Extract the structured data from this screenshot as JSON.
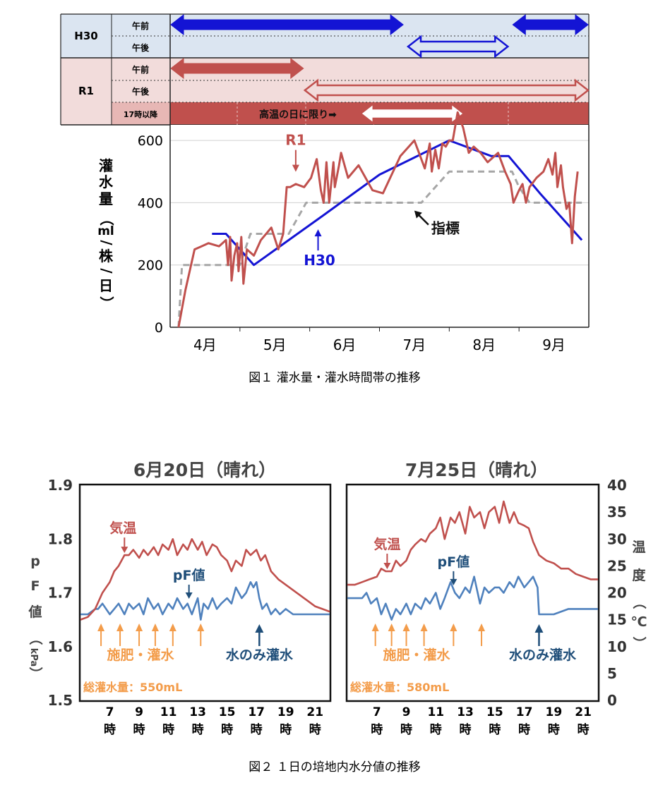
{
  "colors": {
    "blue": "#1414d4",
    "red": "#c0504d",
    "gray": "#a6a6a6",
    "orange": "#f39c4a",
    "navy": "#1f4e79",
    "pf_blue": "#4f81bd",
    "temp_red": "#c0504d",
    "h30_bg": "#dbe5f1",
    "r1_bg": "#f2dcdb",
    "r1_dark": "#c0504d"
  },
  "figure1": {
    "caption": "図１ 灌水量・灌水時間帯の推移",
    "schedule": {
      "rows": [
        {
          "group": "H30",
          "sub": "午前"
        },
        {
          "group": "H30",
          "sub": "午後"
        },
        {
          "group": "R1",
          "sub": "午前"
        },
        {
          "group": "R1",
          "sub": "午後"
        },
        {
          "group": "R1",
          "sub": "17時以降"
        }
      ],
      "group_labels": [
        "H30",
        "R1"
      ],
      "note": "高温の日に限り➡"
    }
  },
  "figure2": {
    "caption": "図２ １日の培地内水分値の推移"
  },
  "chart_data": [
    {
      "type": "line",
      "title": "",
      "ylabel": "灌水量（ml/株/日）",
      "ylabel_chars": [
        "灌",
        "水",
        "量",
        "（",
        "ml",
        "/",
        "株",
        "/",
        "日",
        "）"
      ],
      "ylim": [
        0,
        650
      ],
      "yticks": [
        0,
        200,
        400,
        600
      ],
      "ytick_labels": [
        "0",
        "200",
        "400",
        "600"
      ],
      "xlim": [
        0,
        6
      ],
      "month_labels": [
        "4月",
        "5月",
        "6月",
        "7月",
        "8月",
        "9月"
      ],
      "grid": true,
      "series": [
        {
          "name": "R1",
          "label": "R1",
          "color": "#c0504d",
          "x": [
            0.12,
            0.22,
            0.35,
            0.45,
            0.55,
            0.7,
            0.8,
            0.83,
            0.86,
            0.88,
            0.92,
            0.96,
            0.98,
            1.02,
            1.05,
            1.1,
            1.2,
            1.3,
            1.45,
            1.55,
            1.62,
            1.67,
            1.72,
            1.8,
            1.92,
            2.02,
            2.1,
            2.16,
            2.2,
            2.24,
            2.28,
            2.34,
            2.36,
            2.42,
            2.45,
            2.55,
            2.7,
            2.9,
            3.05,
            3.3,
            3.5,
            3.65,
            3.72,
            3.75,
            3.8,
            3.85,
            3.9,
            3.95,
            4.0,
            4.05,
            4.12,
            4.2,
            4.28,
            4.35,
            4.45,
            4.55,
            4.7,
            4.8,
            4.88,
            4.92,
            5.0,
            5.05,
            5.1,
            5.15,
            5.25,
            5.35,
            5.42,
            5.48,
            5.52,
            5.55,
            5.6,
            5.63,
            5.68,
            5.72,
            5.76,
            5.8,
            5.84
          ],
          "y": [
            0,
            120,
            250,
            260,
            270,
            260,
            280,
            200,
            290,
            150,
            230,
            270,
            180,
            290,
            140,
            250,
            230,
            280,
            320,
            250,
            300,
            450,
            450,
            460,
            450,
            480,
            540,
            440,
            400,
            530,
            400,
            530,
            450,
            520,
            560,
            480,
            520,
            440,
            430,
            550,
            600,
            510,
            590,
            500,
            570,
            510,
            590,
            580,
            600,
            600,
            690,
            640,
            560,
            580,
            560,
            530,
            560,
            500,
            460,
            400,
            440,
            460,
            400,
            450,
            480,
            500,
            540,
            490,
            560,
            450,
            520,
            450,
            380,
            400,
            270,
            420,
            500
          ]
        },
        {
          "name": "H30",
          "label": "H30",
          "color": "#1414d4",
          "x": [
            0.6,
            0.8,
            1.2,
            2.2,
            3.0,
            4.0,
            4.6,
            4.85,
            5.3,
            5.9
          ],
          "y": [
            300,
            300,
            200,
            360,
            490,
            600,
            550,
            550,
            430,
            280
          ]
        },
        {
          "name": "指標",
          "label": "指標",
          "color": "#a6a6a6",
          "x": [
            0.12,
            0.17,
            1.0,
            1.15,
            1.7,
            1.95,
            3.0,
            3.6,
            4.0,
            4.9,
            5.0,
            5.15,
            5.9
          ],
          "y": [
            0,
            200,
            200,
            300,
            300,
            400,
            400,
            400,
            500,
            500,
            450,
            400,
            400
          ]
        }
      ],
      "annotations": [
        "R1",
        "H30",
        "指標"
      ],
      "annotation_points": [
        {
          "series": "R1",
          "x": 1.8,
          "y": 490
        },
        {
          "series": "H30",
          "x": 2.12,
          "y": 310
        },
        {
          "series": "指標",
          "x": 3.52,
          "y": 370
        }
      ],
      "schedule_bars": [
        {
          "row": "H30 午前",
          "ranges": [
            [
              0.0,
              3.35
            ],
            [
              4.9,
              6.0
            ]
          ],
          "style": "solid",
          "color": "#1414d4"
        },
        {
          "row": "H30 午後",
          "ranges": [
            [
              3.4,
              4.85
            ]
          ],
          "style": "hollow",
          "color": "#1414d4"
        },
        {
          "row": "R1 午前",
          "ranges": [
            [
              0.0,
              1.92
            ]
          ],
          "style": "solid",
          "color": "#c0504d"
        },
        {
          "row": "R1 午後",
          "ranges": [
            [
              1.92,
              6.0
            ]
          ],
          "style": "hollow",
          "color": "#c0504d"
        },
        {
          "row": "R1 17時以降",
          "ranges": [
            [
              2.72,
              4.22
            ]
          ],
          "style": "hollow-white",
          "color": "#c0504d"
        }
      ]
    },
    {
      "type": "line",
      "title": "6月20日（晴れ）",
      "ylabel": "pF値（kPa）",
      "ylabel_chars": [
        "p",
        "F",
        "値",
        "（",
        "kPa",
        "）"
      ],
      "ylim": [
        1.5,
        1.9
      ],
      "yticks": [
        1.5,
        1.6,
        1.7,
        1.8,
        1.9
      ],
      "ytick_labels": [
        "1.5",
        "1.6",
        "1.7",
        "1.8",
        "1.9"
      ],
      "xlim": [
        5,
        22
      ],
      "xticks": [
        7,
        9,
        11,
        13,
        15,
        17,
        19,
        21
      ],
      "xtick_labels": [
        "7",
        "9",
        "11",
        "13",
        "15",
        "17",
        "19",
        "21"
      ],
      "xunit": "時",
      "series": [
        {
          "name": "pF値",
          "label": "pF値",
          "color": "#4f81bd",
          "axis": "left",
          "x": [
            5,
            5.5,
            6,
            6.2,
            6.5,
            7,
            7.3,
            7.6,
            8,
            8.3,
            8.6,
            9,
            9.3,
            9.6,
            10,
            10.3,
            10.6,
            11,
            11.3,
            11.6,
            12,
            12.3,
            12.6,
            13,
            13.2,
            13.4,
            13.7,
            14,
            14.3,
            14.6,
            15,
            15.3,
            15.6,
            16,
            16.3,
            16.6,
            16.8,
            17,
            17.2,
            17.4,
            17.7,
            18,
            18.3,
            18.6,
            19,
            19.5,
            20,
            21,
            22
          ],
          "y": [
            1.66,
            1.66,
            1.67,
            1.67,
            1.68,
            1.66,
            1.67,
            1.68,
            1.66,
            1.68,
            1.67,
            1.68,
            1.66,
            1.69,
            1.67,
            1.68,
            1.66,
            1.68,
            1.67,
            1.69,
            1.67,
            1.68,
            1.66,
            1.69,
            1.65,
            1.68,
            1.67,
            1.69,
            1.67,
            1.68,
            1.69,
            1.68,
            1.71,
            1.69,
            1.7,
            1.72,
            1.71,
            1.72,
            1.69,
            1.67,
            1.68,
            1.66,
            1.67,
            1.66,
            1.67,
            1.66,
            1.66,
            1.66,
            1.66
          ]
        },
        {
          "name": "気温",
          "label": "気温",
          "color": "#c0504d",
          "axis": "right",
          "x": [
            5,
            5.5,
            6,
            6.5,
            7,
            7.3,
            7.6,
            8,
            8.3,
            8.6,
            9,
            9.3,
            9.6,
            10,
            10.3,
            10.6,
            11,
            11.3,
            11.6,
            12,
            12.3,
            12.6,
            13,
            13.3,
            13.6,
            14,
            14.3,
            14.6,
            15,
            15.3,
            15.6,
            16,
            16.3,
            16.6,
            17,
            17.3,
            17.6,
            18,
            18.5,
            19,
            19.5,
            20,
            20.5,
            21,
            21.5,
            22
          ],
          "y": [
            15,
            15.5,
            17,
            20,
            22,
            24,
            25,
            27,
            27,
            28,
            26.5,
            28,
            27,
            28.5,
            27,
            29,
            28,
            30,
            27,
            29,
            28,
            30,
            28,
            29.5,
            27,
            29,
            28.5,
            27,
            26,
            24,
            26,
            25,
            28,
            27,
            28,
            26,
            27,
            24,
            22.5,
            21.5,
            20.5,
            19.5,
            18.5,
            17.5,
            17,
            16.5
          ]
        }
      ],
      "right_axis": {
        "label": "温度（℃）",
        "ylim": [
          0,
          40
        ]
      },
      "event_arrows": {
        "fert": [
          6.4,
          7.7,
          9,
          10.1,
          11.3,
          13.2
        ],
        "water_only": [
          17.2
        ]
      },
      "labels": {
        "fert": "施肥・灌水",
        "water": "水のみ灌水",
        "total": "総灌水量：550mL",
        "pf": "pF値",
        "temp": "気温"
      },
      "annotation_points": [
        {
          "series": "気温",
          "x": 8.0,
          "y": 27
        },
        {
          "series": "pF値",
          "x": 12.4,
          "y": 1.685
        }
      ]
    },
    {
      "type": "line",
      "title": "7月25日（晴れ）",
      "ylabel": "温度（℃）",
      "ylabel_chars": [
        "温",
        "度",
        "（",
        "℃",
        "）"
      ],
      "ylim": [
        0,
        40
      ],
      "yticks": [
        0,
        5,
        10,
        15,
        20,
        25,
        30,
        35,
        40
      ],
      "ytick_labels": [
        "0",
        "5",
        "10",
        "15",
        "20",
        "25",
        "30",
        "35",
        "40"
      ],
      "xlim": [
        5,
        22
      ],
      "xticks": [
        7,
        9,
        11,
        13,
        15,
        17,
        19,
        21
      ],
      "xtick_labels": [
        "7",
        "9",
        "11",
        "13",
        "15",
        "17",
        "19",
        "21"
      ],
      "xunit": "時",
      "series": [
        {
          "name": "pF値",
          "label": "pF値",
          "color": "#4f81bd",
          "axis": "left",
          "x": [
            5,
            5.5,
            6,
            6.3,
            6.6,
            7,
            7.3,
            7.6,
            8,
            8.3,
            8.6,
            9,
            9.3,
            9.6,
            10,
            10.3,
            10.6,
            11,
            11.3,
            11.6,
            12,
            12.3,
            12.6,
            13,
            13.3,
            13.6,
            14,
            14.3,
            14.6,
            15,
            15.3,
            15.6,
            16,
            16.3,
            16.6,
            17,
            17.3,
            17.6,
            17.9,
            18,
            18.3,
            19,
            20,
            21,
            22
          ],
          "y": [
            1.69,
            1.69,
            1.69,
            1.7,
            1.68,
            1.69,
            1.66,
            1.68,
            1.65,
            1.67,
            1.66,
            1.68,
            1.66,
            1.68,
            1.67,
            1.69,
            1.68,
            1.7,
            1.67,
            1.69,
            1.72,
            1.7,
            1.69,
            1.71,
            1.7,
            1.73,
            1.68,
            1.71,
            1.7,
            1.71,
            1.71,
            1.7,
            1.72,
            1.71,
            1.73,
            1.71,
            1.72,
            1.73,
            1.71,
            1.66,
            1.66,
            1.66,
            1.67,
            1.67,
            1.67
          ]
        },
        {
          "name": "気温",
          "label": "気温",
          "color": "#c0504d",
          "axis": "right",
          "x": [
            5,
            5.5,
            6,
            6.5,
            7,
            7.3,
            7.6,
            8,
            8.3,
            8.6,
            9,
            9.3,
            9.6,
            10,
            10.3,
            10.6,
            11,
            11.3,
            11.6,
            12,
            12.3,
            12.6,
            13,
            13.3,
            13.6,
            14,
            14.3,
            14.6,
            15,
            15.3,
            15.6,
            16,
            16.3,
            16.6,
            17,
            17.3,
            17.6,
            18,
            18.5,
            19,
            19.5,
            20,
            20.5,
            21,
            21.5,
            22
          ],
          "y": [
            21.5,
            21.5,
            22,
            22.5,
            23,
            24.5,
            24,
            24,
            26,
            25,
            26,
            28,
            29,
            30,
            29.5,
            31,
            32,
            34,
            30,
            34,
            33,
            35,
            31,
            36,
            34,
            35,
            32,
            35,
            36,
            33,
            37,
            33,
            35,
            33,
            32.5,
            32,
            29.5,
            27,
            26,
            25.5,
            24.5,
            24.5,
            23.5,
            23,
            22.5,
            22.5
          ]
        }
      ],
      "left_axis": {
        "label": "pF値（kPa）",
        "ylim": [
          1.5,
          1.9
        ]
      },
      "event_arrows": {
        "fert": [
          6.9,
          8.0,
          9.0,
          10.2,
          12.2,
          14.1
        ],
        "water_only": [
          18.0
        ]
      },
      "labels": {
        "fert": "施肥・灌水",
        "water": "水のみ灌水",
        "total": "総灌水量：580mL",
        "pf": "pF値",
        "temp": "気温"
      },
      "annotation_points": [
        {
          "series": "気温",
          "x": 7.7,
          "y": 24
        },
        {
          "series": "pF値",
          "x": 12.2,
          "y": 1.71
        }
      ]
    }
  ]
}
